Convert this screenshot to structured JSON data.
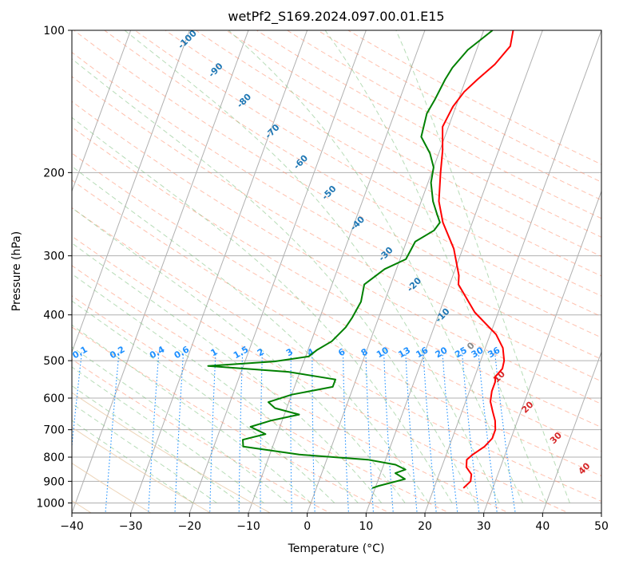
{
  "chart_data": {
    "type": "line",
    "title": "wetPf2_S169.2024.097.00.01.E15",
    "xlabel": "Temperature (°C)",
    "ylabel": "Pressure (hPa)",
    "xlim": [
      -40,
      50
    ],
    "ylim": [
      1050,
      100
    ],
    "y_scale": "log",
    "grid": true,
    "x_ticks": [
      -40,
      -30,
      -20,
      -10,
      0,
      10,
      20,
      30,
      40,
      50
    ],
    "y_ticks": [
      100,
      200,
      300,
      400,
      500,
      600,
      700,
      800,
      900,
      1000
    ],
    "series": [
      {
        "color": "#ff0000",
        "points": [
          [
            25.0,
            930
          ],
          [
            25.8,
            900
          ],
          [
            25.5,
            870
          ],
          [
            24.2,
            840
          ],
          [
            23.8,
            810
          ],
          [
            24.5,
            790
          ],
          [
            26.0,
            760
          ],
          [
            26.8,
            730
          ],
          [
            26.8,
            700
          ],
          [
            26.2,
            670
          ],
          [
            25.2,
            640
          ],
          [
            24.2,
            610
          ],
          [
            23.8,
            580
          ],
          [
            23.8,
            555
          ],
          [
            23.5,
            540
          ],
          [
            24.2,
            520
          ],
          [
            24.0,
            500
          ],
          [
            23.0,
            470
          ],
          [
            21.0,
            440
          ],
          [
            16.0,
            395
          ],
          [
            11.5,
            345
          ],
          [
            11.0,
            330
          ],
          [
            8.5,
            290
          ],
          [
            5.0,
            255
          ],
          [
            3.0,
            230
          ],
          [
            1.5,
            200
          ],
          [
            0.5,
            180
          ],
          [
            -1.0,
            160
          ],
          [
            -0.5,
            145
          ],
          [
            0.5,
            135
          ],
          [
            2.0,
            127
          ],
          [
            4.0,
            118
          ],
          [
            5.5,
            108
          ],
          [
            5.0,
            100
          ]
        ]
      },
      {
        "color": "#008000",
        "points": [
          [
            9.5,
            930
          ],
          [
            10.5,
            920
          ],
          [
            12.5,
            905
          ],
          [
            14.5,
            890
          ],
          [
            12.5,
            865
          ],
          [
            14.0,
            850
          ],
          [
            12.0,
            830
          ],
          [
            7.0,
            810
          ],
          [
            -5.0,
            790
          ],
          [
            -15.0,
            760
          ],
          [
            -15.5,
            735
          ],
          [
            -12.0,
            715
          ],
          [
            -15.0,
            690
          ],
          [
            -12.0,
            670
          ],
          [
            -7.5,
            650
          ],
          [
            -12.0,
            630
          ],
          [
            -13.5,
            612
          ],
          [
            -10.0,
            590
          ],
          [
            -3.5,
            568
          ],
          [
            -3.5,
            548
          ],
          [
            -12.0,
            528
          ],
          [
            -26.0,
            513
          ],
          [
            -15.0,
            502
          ],
          [
            -9.5,
            490
          ],
          [
            -8.5,
            475
          ],
          [
            -6.5,
            455
          ],
          [
            -5.0,
            425
          ],
          [
            -4.5,
            405
          ],
          [
            -4.0,
            375
          ],
          [
            -4.5,
            345
          ],
          [
            -2.0,
            320
          ],
          [
            1.0,
            305
          ],
          [
            1.5,
            280
          ],
          [
            4.0,
            265
          ],
          [
            4.5,
            255
          ],
          [
            3.5,
            245
          ],
          [
            2.0,
            230
          ],
          [
            0.5,
            210
          ],
          [
            0.0,
            195
          ],
          [
            -1.5,
            182
          ],
          [
            -4.0,
            168
          ],
          [
            -4.5,
            150
          ],
          [
            -4.0,
            140
          ],
          [
            -3.5,
            127
          ],
          [
            -3.0,
            120
          ],
          [
            -1.5,
            110
          ],
          [
            1.5,
            100
          ]
        ]
      }
    ],
    "annotations": {
      "dry_adiabats": [
        "-100",
        "-90",
        "-80",
        "-70",
        "-60",
        "-50",
        "-40",
        "-30",
        "-20",
        "-10",
        "0",
        "10",
        "20",
        "30",
        "40"
      ],
      "mixing_ratios": [
        "0.1",
        "0.2",
        "0.4",
        "0.6",
        "1",
        "1.5",
        "2",
        "3",
        "4",
        "6",
        "8",
        "10",
        "13",
        "16",
        "20",
        "25",
        "30",
        "36"
      ]
    },
    "colors": {
      "temperature": "#ff0000",
      "dewpoint": "#008000",
      "dry_adiabat_cold": "#1f77b4",
      "dry_adiabat_warm": "#d62728",
      "mixing_ratio": "#1e90ff",
      "grid": "#b0b0b0"
    }
  }
}
